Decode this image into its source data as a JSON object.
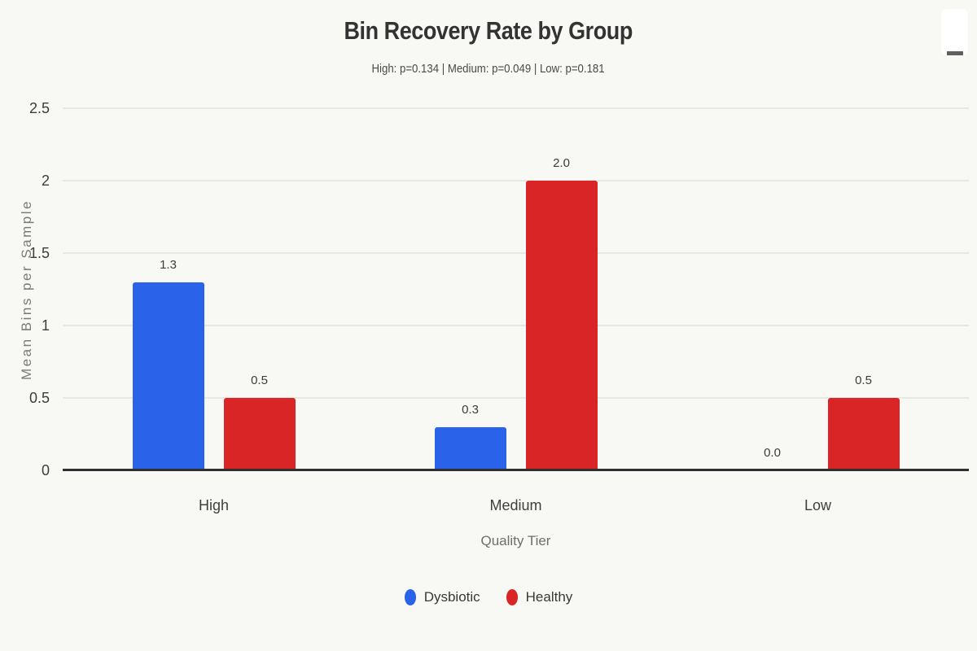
{
  "title": "Bin Recovery Rate by Group",
  "subtitle": "High: p=0.134 | Medium: p=0.049 | Low: p=0.181",
  "menu": {
    "icon": "hamburger-menu-icon"
  },
  "colors": {
    "background": "#f8f9f5",
    "dysbiotic": "#2a63e9",
    "healthy": "#d92525",
    "axis_line": "#303030",
    "gridline": "#e7e8e4",
    "title_text": "#333333",
    "subtitle_text": "#4a4a4a",
    "muted_text": "#6e6e6e"
  },
  "chart_data": {
    "type": "bar",
    "title": "Bin Recovery Rate by Group",
    "subtitle": "High: p=0.134 | Medium: p=0.049 | Low: p=0.181",
    "categories": [
      "High",
      "Medium",
      "Low"
    ],
    "series": [
      {
        "name": "Dysbiotic",
        "color": "#2a63e9",
        "values": [
          1.3,
          0.3,
          0.0
        ]
      },
      {
        "name": "Healthy",
        "color": "#d92525",
        "values": [
          0.5,
          2.0,
          0.5
        ]
      }
    ],
    "data_labels": {
      "Dysbiotic": [
        "1.3",
        "0.3",
        "0.0"
      ],
      "Healthy": [
        "0.5",
        "2.0",
        "0.5"
      ]
    },
    "xlabel": "Quality Tier",
    "ylabel": "Mean Bins per Sample",
    "ylim": [
      0,
      2.5
    ],
    "yticks": [
      0,
      0.5,
      1,
      1.5,
      2,
      2.5
    ],
    "ytick_labels": [
      "0",
      "0.5",
      "1",
      "1.5",
      "2",
      "2.5"
    ],
    "grid": true,
    "legend_position": "bottom"
  }
}
